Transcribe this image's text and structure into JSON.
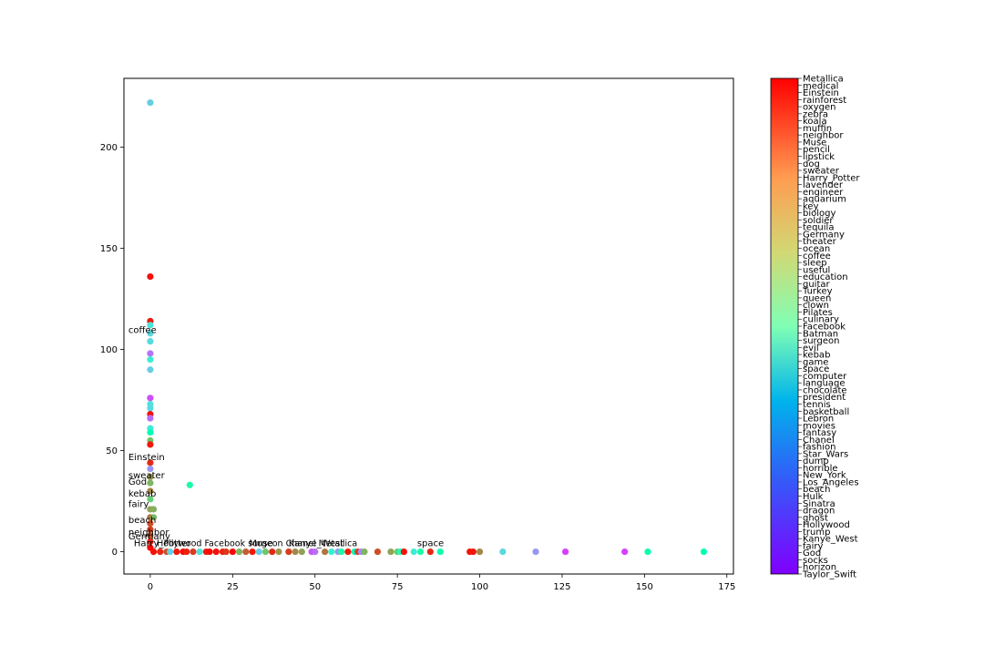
{
  "chart_data": {
    "type": "scatter",
    "title": "",
    "xlabel": "",
    "ylabel": "",
    "xlim": [
      -8,
      177
    ],
    "ylim": [
      -11,
      234
    ],
    "x_ticks": [
      0,
      25,
      50,
      75,
      100,
      125,
      150,
      175
    ],
    "y_ticks": [
      0,
      50,
      100,
      150,
      200
    ],
    "grid": false,
    "colormap": "rainbow",
    "colorbar_labels": [
      "Metallica",
      "medical",
      "Einstein",
      "rainforest",
      "oxygen",
      "zebra",
      "koala",
      "muffin",
      "neighbor",
      "Muse",
      "pencil",
      "lipstick",
      "dog",
      "sweater",
      "Harry_Potter",
      "lavender",
      "engineer",
      "aquarium",
      "key",
      "biology",
      "soldier",
      "tequila",
      "Germany",
      "theater",
      "ocean",
      "coffee",
      "sleep",
      "useful",
      "education",
      "guitar",
      "Turkey",
      "queen",
      "clown",
      "Pilates",
      "culinary",
      "Facebook",
      "Batman",
      "surgeon",
      "evil",
      "kebab",
      "game",
      "space",
      "computer",
      "language",
      "chocolate",
      "president",
      "tennis",
      "basketball",
      "Lebron",
      "movies",
      "fantasy",
      "Chanel",
      "fashion",
      "Star_Wars",
      "dump",
      "horrible",
      "New_York",
      "Los_Angeles",
      "beach",
      "Hulk",
      "Sinatra",
      "dragon",
      "ghost",
      "Hollywood",
      "trump",
      "Kanye_West",
      "fairy",
      "God",
      "socks",
      "horizon",
      "Taylor_Swift"
    ],
    "points_y_axis": [
      {
        "x": 0,
        "y": 222,
        "c": 0.3
      },
      {
        "x": 0,
        "y": 136,
        "c": 0.98
      },
      {
        "x": 0,
        "y": 114,
        "c": 0.97
      },
      {
        "x": 0,
        "y": 112,
        "c": 0.35
      },
      {
        "x": 0,
        "y": 108,
        "c": 0.32
      },
      {
        "x": 0,
        "y": 104,
        "c": 0.33
      },
      {
        "x": 0,
        "y": 98,
        "c": 0.15
      },
      {
        "x": 0,
        "y": 95,
        "c": 0.38
      },
      {
        "x": 0,
        "y": 90,
        "c": 0.3
      },
      {
        "x": 0,
        "y": 76,
        "c": 0.1
      },
      {
        "x": 0,
        "y": 73,
        "c": 0.34
      },
      {
        "x": 0,
        "y": 71,
        "c": 0.33
      },
      {
        "x": 0,
        "y": 68,
        "c": 0.98
      },
      {
        "x": 0,
        "y": 66,
        "c": 0.14
      },
      {
        "x": 0,
        "y": 61,
        "c": 0.37
      },
      {
        "x": 0,
        "y": 59,
        "c": 0.5
      },
      {
        "x": 0,
        "y": 55,
        "c": 0.72
      },
      {
        "x": 0,
        "y": 53,
        "c": 0.97
      },
      {
        "x": 0,
        "y": 44,
        "c": 0.95
      },
      {
        "x": 0,
        "y": 41,
        "c": 0.2
      },
      {
        "x": 0,
        "y": 37,
        "c": 0.8
      },
      {
        "x": 0,
        "y": 34,
        "c": 0.75
      },
      {
        "x": 0,
        "y": 30,
        "c": 0.82
      },
      {
        "x": 0,
        "y": 26,
        "c": 0.7
      },
      {
        "x": 0,
        "y": 21,
        "c": 0.78
      },
      {
        "x": 0,
        "y": 17,
        "c": 0.85
      },
      {
        "x": 0,
        "y": 14,
        "c": 0.9
      },
      {
        "x": 0,
        "y": 11,
        "c": 0.92
      },
      {
        "x": 0,
        "y": 8,
        "c": 0.88
      },
      {
        "x": 0,
        "y": 5,
        "c": 0.96
      },
      {
        "x": 0,
        "y": 2,
        "c": 0.99
      },
      {
        "x": 1,
        "y": 21,
        "c": 0.76
      },
      {
        "x": 1,
        "y": 17,
        "c": 0.74
      },
      {
        "x": 12,
        "y": 33,
        "c": 0.55
      }
    ],
    "points_x_axis": [
      {
        "x": 1,
        "y": 0,
        "c": 0.98
      },
      {
        "x": 3,
        "y": 0,
        "c": 0.95
      },
      {
        "x": 5,
        "y": 0,
        "c": 0.9
      },
      {
        "x": 6,
        "y": 0,
        "c": 0.3
      },
      {
        "x": 8,
        "y": 0,
        "c": 0.97
      },
      {
        "x": 10,
        "y": 0,
        "c": 0.99
      },
      {
        "x": 11,
        "y": 0,
        "c": 0.96
      },
      {
        "x": 13,
        "y": 0,
        "c": 0.92
      },
      {
        "x": 15,
        "y": 0,
        "c": 0.35
      },
      {
        "x": 17,
        "y": 0,
        "c": 0.97
      },
      {
        "x": 18,
        "y": 0,
        "c": 0.99
      },
      {
        "x": 20,
        "y": 0,
        "c": 0.98
      },
      {
        "x": 22,
        "y": 0,
        "c": 0.96
      },
      {
        "x": 23,
        "y": 0,
        "c": 0.93
      },
      {
        "x": 25,
        "y": 0,
        "c": 0.99
      },
      {
        "x": 27,
        "y": 0,
        "c": 0.75
      },
      {
        "x": 29,
        "y": 0,
        "c": 0.88
      },
      {
        "x": 31,
        "y": 0,
        "c": 0.97
      },
      {
        "x": 33,
        "y": 0,
        "c": 0.3
      },
      {
        "x": 35,
        "y": 0,
        "c": 0.72
      },
      {
        "x": 37,
        "y": 0,
        "c": 0.95
      },
      {
        "x": 39,
        "y": 0,
        "c": 0.8
      },
      {
        "x": 42,
        "y": 0,
        "c": 0.92
      },
      {
        "x": 44,
        "y": 0,
        "c": 0.82
      },
      {
        "x": 46,
        "y": 0,
        "c": 0.78
      },
      {
        "x": 49,
        "y": 0,
        "c": 0.1
      },
      {
        "x": 50,
        "y": 0,
        "c": 0.14
      },
      {
        "x": 53,
        "y": 0,
        "c": 0.85
      },
      {
        "x": 55,
        "y": 0,
        "c": 0.4
      },
      {
        "x": 57,
        "y": 0,
        "c": 0.2
      },
      {
        "x": 58,
        "y": 0,
        "c": 0.55
      },
      {
        "x": 60,
        "y": 0,
        "c": 0.97
      },
      {
        "x": 62,
        "y": 0,
        "c": 0.5
      },
      {
        "x": 63,
        "y": 0,
        "c": 0.92
      },
      {
        "x": 64,
        "y": 0,
        "c": 0.18
      },
      {
        "x": 65,
        "y": 0,
        "c": 0.75
      },
      {
        "x": 69,
        "y": 0,
        "c": 0.9
      },
      {
        "x": 73,
        "y": 0,
        "c": 0.78
      },
      {
        "x": 75,
        "y": 0,
        "c": 0.7
      },
      {
        "x": 76,
        "y": 0,
        "c": 0.45
      },
      {
        "x": 77,
        "y": 0,
        "c": 0.98
      },
      {
        "x": 80,
        "y": 0,
        "c": 0.38
      },
      {
        "x": 82,
        "y": 0,
        "c": 0.55
      },
      {
        "x": 85,
        "y": 0,
        "c": 0.95
      },
      {
        "x": 88,
        "y": 0,
        "c": 0.52
      },
      {
        "x": 97,
        "y": 0,
        "c": 0.98
      },
      {
        "x": 98,
        "y": 0,
        "c": 0.97
      },
      {
        "x": 100,
        "y": 0,
        "c": 0.82
      },
      {
        "x": 107,
        "y": 0,
        "c": 0.32
      },
      {
        "x": 117,
        "y": 0,
        "c": 0.2
      },
      {
        "x": 126,
        "y": 0,
        "c": 0.08
      },
      {
        "x": 144,
        "y": 0,
        "c": 0.08
      },
      {
        "x": 151,
        "y": 0,
        "c": 0.52
      },
      {
        "x": 168,
        "y": 0,
        "c": 0.5
      }
    ],
    "annotations_y_axis": [
      {
        "text": "coffee",
        "x": 0,
        "y": 110
      },
      {
        "text": "Einstein",
        "x": 0,
        "y": 47
      },
      {
        "text": "sweater",
        "x": 0,
        "y": 38
      },
      {
        "text": "God",
        "x": 0,
        "y": 35
      },
      {
        "text": "kebab",
        "x": 0,
        "y": 29
      },
      {
        "text": "fairy",
        "x": 0,
        "y": 24
      },
      {
        "text": "beach",
        "x": 0,
        "y": 16
      },
      {
        "text": "neighbor",
        "x": 0,
        "y": 10
      },
      {
        "text": "Germany",
        "x": 0,
        "y": 8
      }
    ],
    "annotations_x_axis": [
      {
        "text": "Harry_Potter",
        "x": -5,
        "y": 1
      },
      {
        "text": "Muse",
        "x": 30,
        "y": 1
      },
      {
        "text": "Kanye_West",
        "x": 42,
        "y": 1
      },
      {
        "text": "space",
        "x": 81,
        "y": 1
      }
    ],
    "annotation_clutter_text": "Hollywood Facebook surgeon Chanel Metallica"
  }
}
